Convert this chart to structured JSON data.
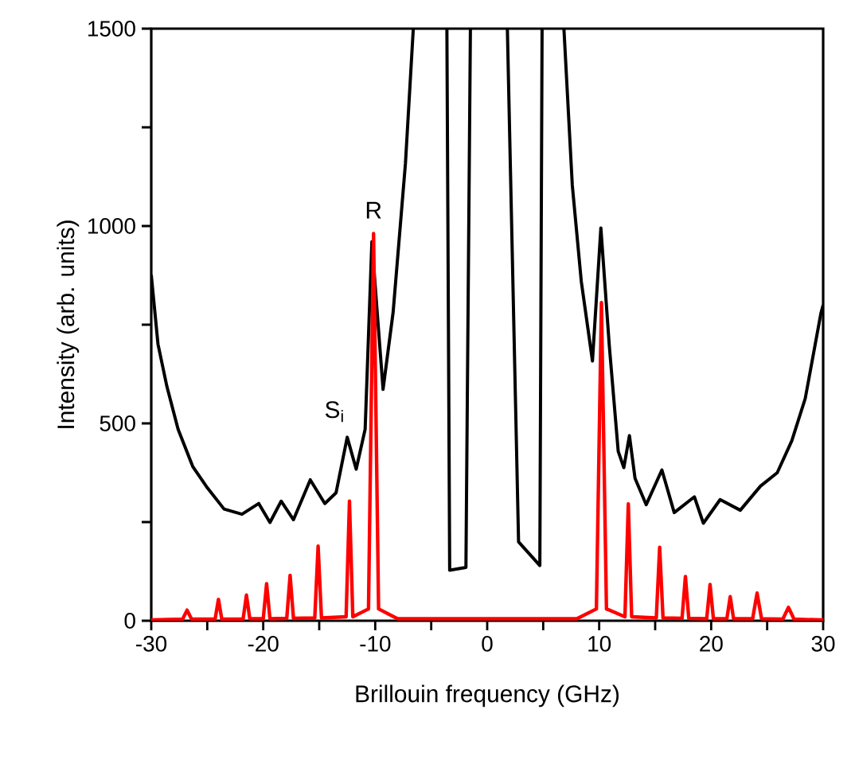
{
  "chart_data": {
    "type": "line",
    "xlabel": "Brillouin frequency (GHz)",
    "ylabel": "Intensity (arb. units)",
    "xlim": [
      -30,
      30
    ],
    "ylim": [
      0,
      1500
    ],
    "xticks": [
      -30,
      {
        "value": -25,
        "label": null
      },
      -20,
      {
        "value": -15,
        "label": null
      },
      -10,
      {
        "value": -5,
        "label": null
      },
      0,
      {
        "value": 5,
        "label": null
      },
      10,
      {
        "value": 15,
        "label": null
      },
      20,
      {
        "value": 25,
        "label": null
      },
      30
    ],
    "yticks": [
      0,
      {
        "value": 250,
        "label": null
      },
      500,
      {
        "value": 750,
        "label": null
      },
      1000,
      {
        "value": 1250,
        "label": null
      },
      1500
    ],
    "marker": "none",
    "line_style": "solid",
    "annotations": [
      {
        "text": "R",
        "x": -10.15,
        "y": 981
      },
      {
        "text": "S$_{i}$",
        "x": -12.5,
        "y": 465
      }
    ],
    "series": [
      {
        "color": "#000000",
        "x": [
          -30,
          -29.4,
          -28.6,
          -27.6,
          -26.3,
          -25.0,
          -23.5,
          -21.9,
          -20.4,
          -19.4,
          -18.4,
          -17.3,
          -15.8,
          -14.5,
          -13.5,
          -12.5,
          -11.7,
          -10.9,
          -10.3,
          -9.3,
          -8.4,
          -7.3,
          -6.6,
          -5,
          -3.6,
          -3.35,
          -1.9,
          -1.5,
          0,
          1.8,
          2.8,
          4.7,
          4.9,
          6,
          6.85,
          7.6,
          8.4,
          9.4,
          10.15,
          10.9,
          11.7,
          12.2,
          12.7,
          13.2,
          14.2,
          15.6,
          16.7,
          18.5,
          19.3,
          20.8,
          22.6,
          24.4,
          25.9,
          27.2,
          28.4,
          29.8,
          30
        ],
        "values": [
          876,
          701,
          593,
          485,
          391,
          337,
          283,
          270,
          297,
          249,
          303,
          256,
          357,
          297,
          324,
          465,
          384,
          485,
          960,
          586,
          782,
          1159,
          1500,
          null,
          1500,
          128,
          135,
          1500,
          null,
          1500,
          200,
          140,
          1500,
          null,
          1500,
          1103,
          860,
          658,
          995,
          698,
          429,
          388,
          469,
          361,
          294,
          382,
          274,
          314,
          247,
          307,
          280,
          341,
          375,
          456,
          563,
          779,
          800
        ]
      },
      {
        "color": "#ff0000",
        "x": [
          -30,
          -27.2,
          -26.8,
          -26.4,
          -24.3,
          -24.0,
          -23.7,
          -21.8,
          -21.5,
          -21.2,
          -20.0,
          -19.7,
          -19.4,
          -17.9,
          -17.6,
          -17.3,
          -15.4,
          -15.1,
          -14.8,
          -12.6,
          -12.3,
          -12.0,
          -10.6,
          -10.15,
          -9.7,
          -8,
          8,
          9.75,
          10.2,
          10.65,
          12.3,
          12.6,
          12.9,
          15.1,
          15.4,
          15.7,
          17.4,
          17.7,
          18.0,
          19.6,
          19.9,
          20.2,
          21.4,
          21.7,
          22.0,
          23.7,
          24.1,
          24.5,
          26.4,
          26.9,
          27.4,
          30
        ],
        "values": [
          2,
          4,
          27,
          4,
          4,
          54,
          4,
          4,
          65,
          5,
          5,
          94,
          5,
          6,
          115,
          6,
          7,
          189,
          7,
          10,
          303,
          10,
          30,
          981,
          30,
          5,
          5,
          30,
          806,
          30,
          10,
          296,
          10,
          7,
          186,
          7,
          6,
          112,
          6,
          5,
          92,
          5,
          5,
          61,
          5,
          5,
          70,
          5,
          4,
          34,
          4,
          2
        ]
      }
    ]
  }
}
